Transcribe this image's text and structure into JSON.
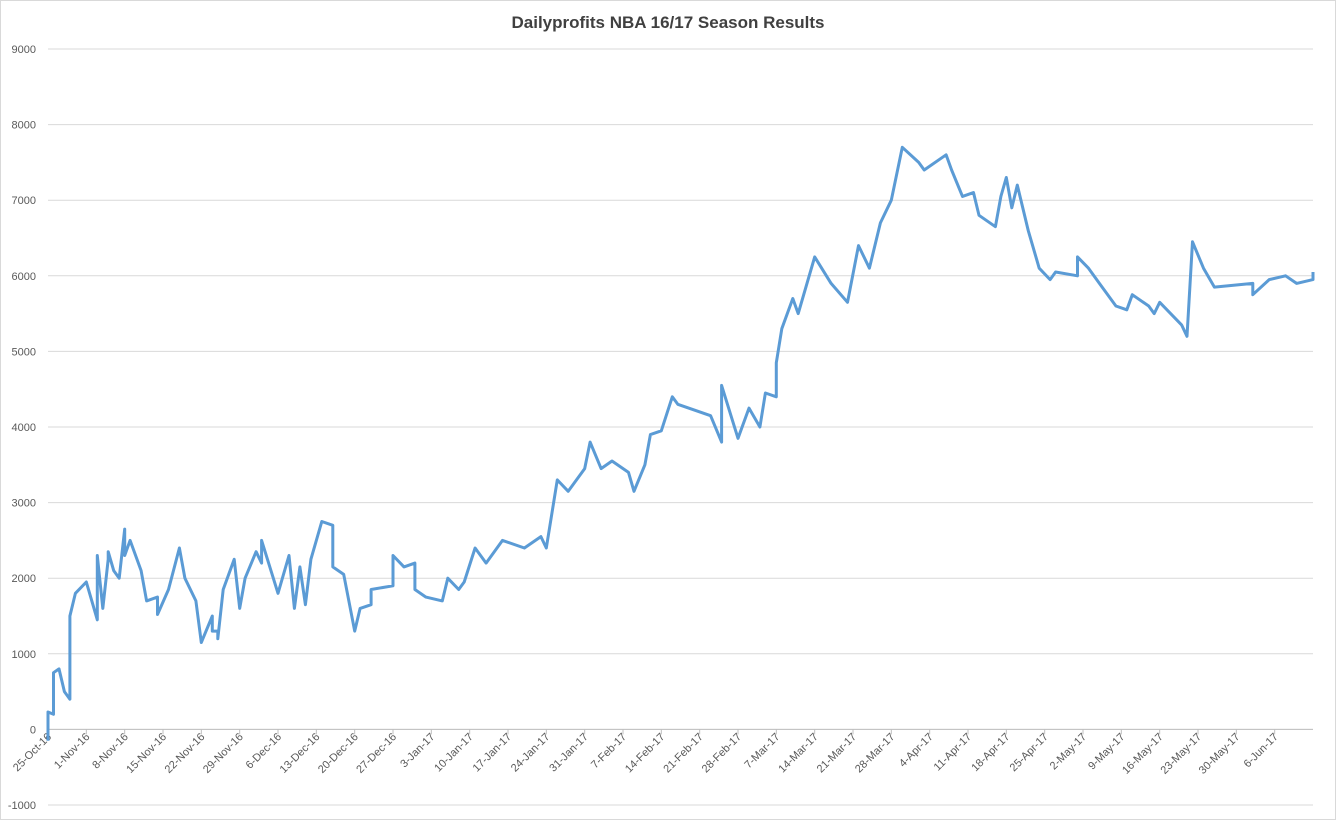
{
  "chart_data": {
    "type": "line",
    "title": "Dailyprofits NBA 16/17 Season Results",
    "color": "#5b9bd5",
    "grid": true,
    "x": [
      "25-Oct-16",
      "25-Oct-16",
      "26-Oct-16",
      "26-Oct-16",
      "27-Oct-16",
      "28-Oct-16",
      "29-Oct-16",
      "29-Oct-16",
      "30-Oct-16",
      "1-Nov-16",
      "3-Nov-16",
      "3-Nov-16",
      "4-Nov-16",
      "5-Nov-16",
      "5-Nov-16",
      "6-Nov-16",
      "7-Nov-16",
      "8-Nov-16",
      "8-Nov-16",
      "9-Nov-16",
      "11-Nov-16",
      "12-Nov-16",
      "14-Nov-16",
      "14-Nov-16",
      "16-Nov-16",
      "18-Nov-16",
      "19-Nov-16",
      "21-Nov-16",
      "22-Nov-16",
      "24-Nov-16",
      "24-Nov-16",
      "25-Nov-16",
      "25-Nov-16",
      "26-Nov-16",
      "28-Nov-16",
      "29-Nov-16",
      "30-Nov-16",
      "2-Dec-16",
      "3-Dec-16",
      "3-Dec-16",
      "6-Dec-16",
      "8-Dec-16",
      "9-Dec-16",
      "10-Dec-16",
      "11-Dec-16",
      "12-Dec-16",
      "14-Dec-16",
      "16-Dec-16",
      "16-Dec-16",
      "18-Dec-16",
      "20-Dec-16",
      "21-Dec-16",
      "23-Dec-16",
      "23-Dec-16",
      "27-Dec-16",
      "27-Dec-16",
      "29-Dec-16",
      "31-Dec-16",
      "31-Dec-16",
      "2-Jan-17",
      "5-Jan-17",
      "6-Jan-17",
      "8-Jan-17",
      "9-Jan-17",
      "11-Jan-17",
      "13-Jan-17",
      "16-Jan-17",
      "20-Jan-17",
      "23-Jan-17",
      "24-Jan-17",
      "26-Jan-17",
      "28-Jan-17",
      "31-Jan-17",
      "1-Feb-17",
      "3-Feb-17",
      "5-Feb-17",
      "8-Feb-17",
      "9-Feb-17",
      "11-Feb-17",
      "12-Feb-17",
      "14-Feb-17",
      "16-Feb-17",
      "17-Feb-17",
      "23-Feb-17",
      "25-Feb-17",
      "25-Feb-17",
      "28-Feb-17",
      "2-Mar-17",
      "4-Mar-17",
      "5-Mar-17",
      "7-Mar-17",
      "7-Mar-17",
      "8-Mar-17",
      "10-Mar-17",
      "11-Mar-17",
      "14-Mar-17",
      "17-Mar-17",
      "20-Mar-17",
      "22-Mar-17",
      "24-Mar-17",
      "26-Mar-17",
      "28-Mar-17",
      "30-Mar-17",
      "2-Apr-17",
      "3-Apr-17",
      "7-Apr-17",
      "8-Apr-17",
      "10-Apr-17",
      "12-Apr-17",
      "13-Apr-17",
      "16-Apr-17",
      "17-Apr-17",
      "18-Apr-17",
      "19-Apr-17",
      "20-Apr-17",
      "22-Apr-17",
      "24-Apr-17",
      "26-Apr-17",
      "27-Apr-17",
      "1-May-17",
      "1-May-17",
      "3-May-17",
      "5-May-17",
      "8-May-17",
      "10-May-17",
      "11-May-17",
      "14-May-17",
      "15-May-17",
      "16-May-17",
      "20-May-17",
      "21-May-17",
      "22-May-17",
      "24-May-17",
      "26-May-17",
      "2-Jun-17",
      "2-Jun-17",
      "5-Jun-17",
      "8-Jun-17",
      "10-Jun-17",
      "13-Jun-17",
      "13-Jun-17"
    ],
    "values": [
      -150,
      230,
      200,
      750,
      800,
      500,
      400,
      1500,
      1800,
      1950,
      1450,
      2300,
      1600,
      2250,
      2350,
      2100,
      2000,
      2650,
      2300,
      2500,
      2100,
      1700,
      1750,
      1520,
      1850,
      2400,
      2000,
      1700,
      1150,
      1500,
      1300,
      1300,
      1200,
      1850,
      2250,
      1600,
      2000,
      2350,
      2200,
      2500,
      1800,
      2300,
      1600,
      2150,
      1650,
      2250,
      2750,
      2700,
      2150,
      2050,
      1300,
      1600,
      1650,
      1850,
      1900,
      2300,
      2150,
      2200,
      1850,
      1750,
      1700,
      2000,
      1850,
      1950,
      2400,
      2200,
      2500,
      2400,
      2550,
      2400,
      3300,
      3150,
      3450,
      3800,
      3450,
      3550,
      3400,
      3150,
      3500,
      3900,
      3950,
      4400,
      4300,
      4150,
      3800,
      4550,
      3850,
      4250,
      4000,
      4450,
      4400,
      4850,
      5300,
      5700,
      5500,
      6250,
      5900,
      5650,
      6400,
      6100,
      6700,
      7000,
      7700,
      7500,
      7400,
      7600,
      7400,
      7050,
      7100,
      6800,
      6650,
      7050,
      7300,
      6900,
      7200,
      6600,
      6100,
      5950,
      6050,
      6000,
      6250,
      6100,
      5900,
      5600,
      5550,
      5750,
      5600,
      5500,
      5650,
      5350,
      5200,
      6450,
      6100,
      5850,
      5900,
      5750,
      5950,
      6000,
      5900,
      5950,
      6050
    ],
    "xlim": [
      "25-Oct-16",
      "13-Jun-17"
    ],
    "xticks": [
      "25-Oct-16",
      "1-Nov-16",
      "8-Nov-16",
      "15-Nov-16",
      "22-Nov-16",
      "29-Nov-16",
      "6-Dec-16",
      "13-Dec-16",
      "20-Dec-16",
      "27-Dec-16",
      "3-Jan-17",
      "10-Jan-17",
      "17-Jan-17",
      "24-Jan-17",
      "31-Jan-17",
      "7-Feb-17",
      "14-Feb-17",
      "21-Feb-17",
      "28-Feb-17",
      "7-Mar-17",
      "14-Mar-17",
      "21-Mar-17",
      "28-Mar-17",
      "4-Apr-17",
      "11-Apr-17",
      "18-Apr-17",
      "25-Apr-17",
      "2-May-17",
      "9-May-17",
      "16-May-17",
      "23-May-17",
      "30-May-17",
      "6-Jun-17"
    ],
    "ylim": [
      -1000,
      9000
    ],
    "yticks": [
      -1000,
      0,
      1000,
      2000,
      3000,
      4000,
      5000,
      6000,
      7000,
      8000,
      9000
    ]
  }
}
